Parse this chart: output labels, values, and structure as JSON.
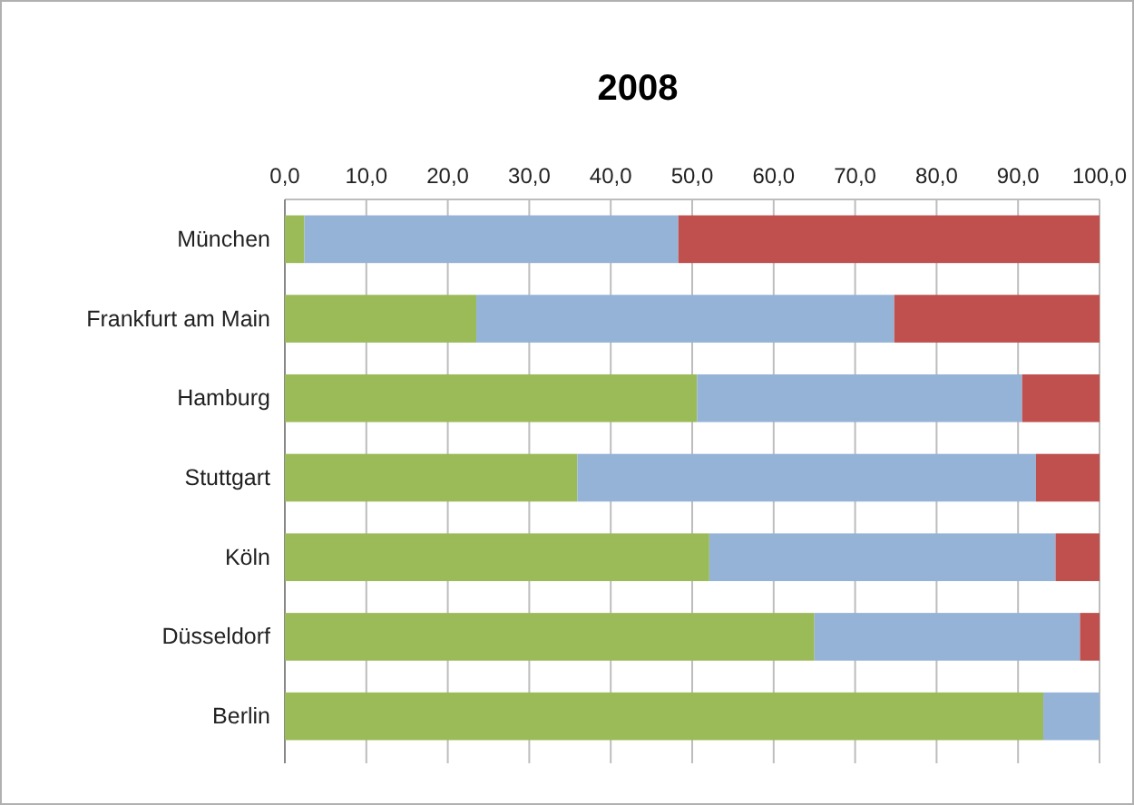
{
  "chart_data": {
    "type": "bar",
    "orientation": "horizontal",
    "stacked": true,
    "title": "2008",
    "categories": [
      "München",
      "Frankfurt am Main",
      "Hamburg",
      "Stuttgart",
      "Köln",
      "Düsseldorf",
      "Berlin"
    ],
    "series": [
      {
        "color": "#9bbb59",
        "values": [
          2.4,
          23.5,
          50.6,
          35.9,
          52.1,
          65.0,
          93.1
        ]
      },
      {
        "color": "#95b3d7",
        "values": [
          45.9,
          51.3,
          39.9,
          56.3,
          42.5,
          32.6,
          6.9
        ]
      },
      {
        "color": "#c0504d",
        "values": [
          51.7,
          25.2,
          9.5,
          7.8,
          5.4,
          2.4,
          null
        ]
      }
    ],
    "xlim": [
      0,
      100
    ],
    "xticks": [
      {
        "value": 0,
        "label": "0,0"
      },
      {
        "value": 10,
        "label": "10,0"
      },
      {
        "value": 20,
        "label": "20,0"
      },
      {
        "value": 30,
        "label": "30,0"
      },
      {
        "value": 40,
        "label": "40,0"
      },
      {
        "value": 50,
        "label": "50,0"
      },
      {
        "value": 60,
        "label": "60,0"
      },
      {
        "value": 70,
        "label": "70,0"
      },
      {
        "value": 80,
        "label": "80,0"
      },
      {
        "value": 90,
        "label": "90,0"
      },
      {
        "value": 100,
        "label": "100,0"
      }
    ],
    "grid": "x"
  }
}
